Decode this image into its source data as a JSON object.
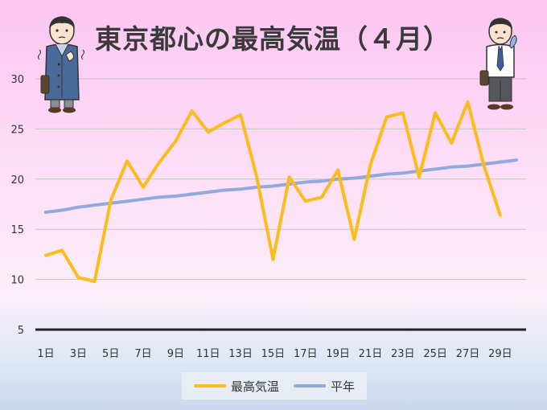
{
  "title": "東京都心の最高気温（４月）",
  "chart_data": {
    "type": "line",
    "title": "東京都心の最高気温（４月）",
    "x": [
      "1日",
      "2日",
      "3日",
      "4日",
      "5日",
      "6日",
      "7日",
      "8日",
      "9日",
      "10日",
      "11日",
      "12日",
      "13日",
      "14日",
      "15日",
      "16日",
      "17日",
      "18日",
      "19日",
      "20日",
      "21日",
      "22日",
      "23日",
      "24日",
      "25日",
      "26日",
      "27日",
      "28日",
      "29日",
      "30日"
    ],
    "x_tick_labels": [
      "1日",
      "3日",
      "5日",
      "7日",
      "9日",
      "11日",
      "13日",
      "15日",
      "17日",
      "19日",
      "21日",
      "23日",
      "25日",
      "27日",
      "29日"
    ],
    "y_ticks": [
      5,
      10,
      15,
      20,
      25,
      30
    ],
    "ylim": [
      5,
      30
    ],
    "grid": true,
    "legend_position": "bottom",
    "series": [
      {
        "name": "最高気温",
        "color": "#fbbd1b",
        "values": [
          12.4,
          12.9,
          10.2,
          9.8,
          17.9,
          21.8,
          19.2,
          21.7,
          23.8,
          26.8,
          24.7,
          25.6,
          26.4,
          20.2,
          12.0,
          20.2,
          17.8,
          18.2,
          20.9,
          14.0,
          21.4,
          26.2,
          26.6,
          20.2,
          26.6,
          23.6,
          27.7,
          21.3,
          16.4,
          null
        ]
      },
      {
        "name": "平年",
        "color": "#91a9db",
        "values": [
          16.7,
          16.9,
          17.2,
          17.4,
          17.6,
          17.8,
          18.0,
          18.2,
          18.3,
          18.5,
          18.7,
          18.9,
          19.0,
          19.2,
          19.3,
          19.5,
          19.7,
          19.8,
          20.0,
          20.1,
          20.3,
          20.5,
          20.6,
          20.8,
          21.0,
          21.2,
          21.3,
          21.5,
          21.7,
          21.9
        ]
      }
    ]
  }
}
